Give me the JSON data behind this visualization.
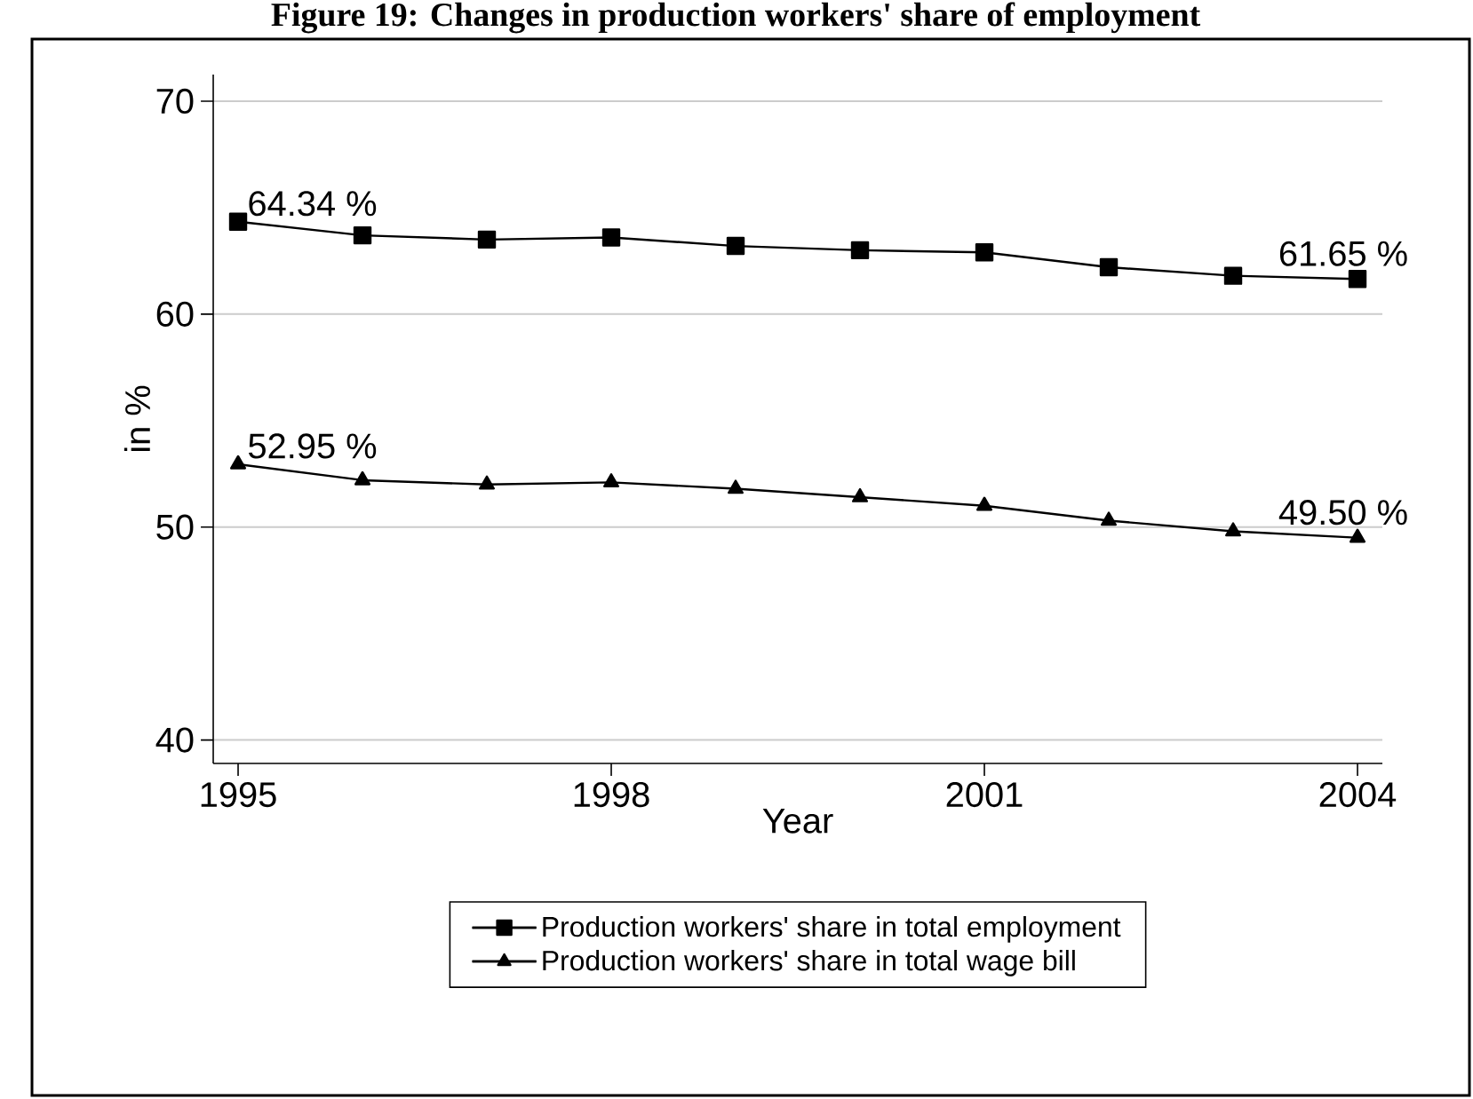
{
  "chart_data": {
    "type": "line",
    "title": "Figure 19: Changes in production workers' share of employment",
    "xlabel": "Year",
    "ylabel": "in %",
    "x": [
      1995,
      1996,
      1997,
      1998,
      1999,
      2000,
      2001,
      2002,
      2003,
      2004
    ],
    "series": [
      {
        "name": "Production workers' share in total employment",
        "color": "#000000",
        "marker": "square",
        "values": [
          64.34,
          63.7,
          63.5,
          63.6,
          63.2,
          63.0,
          62.9,
          62.2,
          61.8,
          61.65
        ],
        "value_labels": [
          "64.34 %",
          null,
          null,
          null,
          null,
          null,
          null,
          null,
          null,
          "61.65 %"
        ]
      },
      {
        "name": "Production workers' share in total wage bill",
        "color": "#000000",
        "marker": "triangle",
        "values": [
          52.95,
          52.2,
          52.0,
          52.1,
          51.8,
          51.4,
          51.0,
          50.3,
          49.8,
          49.5
        ],
        "value_labels": [
          "52.95 %",
          null,
          null,
          null,
          null,
          null,
          null,
          null,
          null,
          "49.50 %"
        ]
      }
    ],
    "xlim": [
      1994.8,
      2004.2
    ],
    "xticks": [
      1995,
      1998,
      2001,
      2004
    ],
    "ylim": [
      38.9,
      71.25
    ],
    "yticks": [
      40,
      50,
      60,
      70
    ],
    "grid": "y",
    "legend": "bottom",
    "line_style": "solid"
  }
}
